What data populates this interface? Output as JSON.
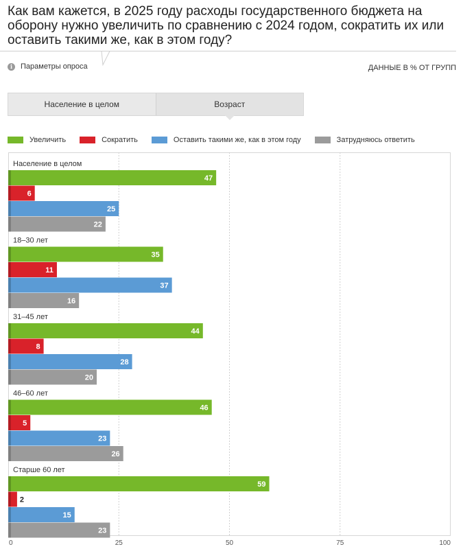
{
  "header": {
    "title": "Как вам кажется, в 2025 году расходы государственного бюджета на оборону нужно увеличить по сравнению с 2024 годом, сократить их или оставить такими же, как в этом году?",
    "params_label": "Параметры опроса",
    "info_icon": "info-icon",
    "units_note": "ДАННЫЕ В % ОТ ГРУПП"
  },
  "tabs": [
    {
      "label": "Население в целом",
      "active": false
    },
    {
      "label": "Возраст",
      "active": true
    }
  ],
  "colors": {
    "increase": "#76b82a",
    "decrease": "#d9222a",
    "keep": "#5b9bd5",
    "unsure": "#9b9b9b"
  },
  "chart_data": {
    "type": "bar",
    "orientation": "horizontal",
    "categories": [
      "Население в целом",
      "18–30 лет",
      "31–45 лет",
      "46–60 лет",
      "Старше 60 лет"
    ],
    "series": [
      {
        "name": "Увеличить",
        "color": "#76b82a",
        "values": [
          47,
          35,
          44,
          46,
          59
        ]
      },
      {
        "name": "Сократить",
        "color": "#d9222a",
        "values": [
          6,
          11,
          8,
          5,
          2
        ]
      },
      {
        "name": "Оставить такими же, как в этом году",
        "color": "#5b9bd5",
        "values": [
          25,
          37,
          28,
          23,
          15
        ]
      },
      {
        "name": "Затрудняюсь ответить",
        "color": "#9b9b9b",
        "values": [
          22,
          16,
          20,
          26,
          23
        ]
      }
    ],
    "xlim": [
      0,
      100
    ],
    "xticks": [
      0,
      25,
      50,
      75,
      100
    ],
    "grid": true,
    "legend_position": "top-left"
  }
}
